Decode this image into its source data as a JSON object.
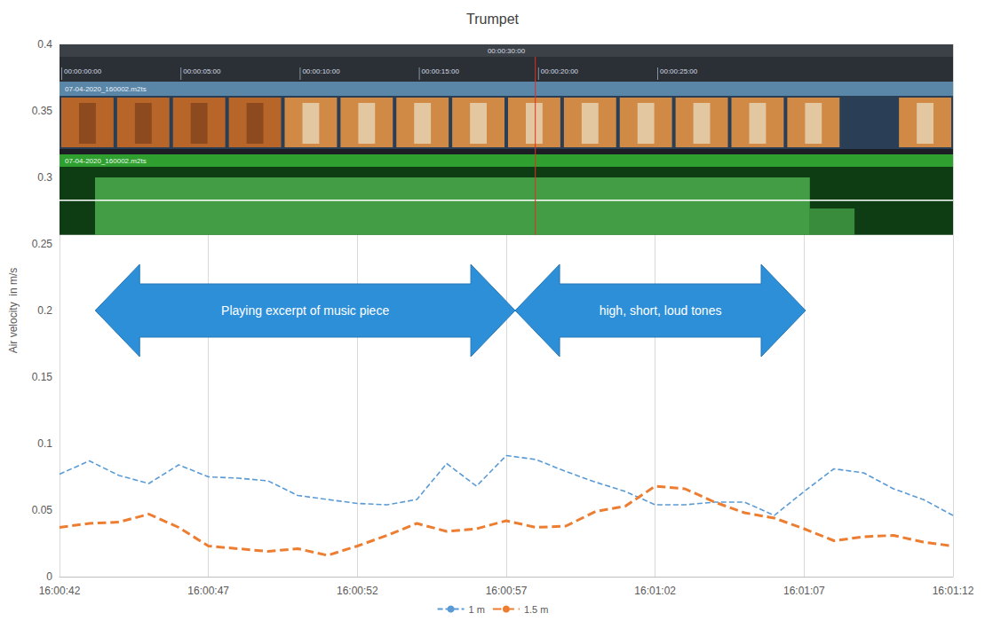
{
  "chart_data": {
    "type": "line",
    "title": "Trumpet",
    "y_label": "Air velocity  in m/s",
    "categories": [
      "16:00:42",
      null,
      null,
      null,
      null,
      "16:00:47",
      null,
      null,
      null,
      null,
      "16:00:52",
      null,
      null,
      null,
      null,
      "16:00:57",
      null,
      null,
      null,
      null,
      "16:01:02",
      null,
      null,
      null,
      null,
      "16:01:07",
      null,
      null,
      null,
      null,
      "16:01:12"
    ],
    "series": [
      {
        "name": "1 m",
        "color": "#5b9bd5",
        "line_style": "dashed",
        "values": [
          0.077,
          0.087,
          0.076,
          0.07,
          0.084,
          0.075,
          0.074,
          0.072,
          0.061,
          0.058,
          0.055,
          0.054,
          0.058,
          0.085,
          0.068,
          0.091,
          0.088,
          0.079,
          0.071,
          0.064,
          0.054,
          0.054,
          0.056,
          0.056,
          0.046,
          0.064,
          0.081,
          0.078,
          0.066,
          0.058,
          0.046
        ]
      },
      {
        "name": "1.5 m",
        "color": "#ed7d31",
        "line_style": "dashed",
        "values": [
          0.037,
          0.04,
          0.041,
          0.047,
          0.037,
          0.023,
          0.021,
          0.019,
          0.021,
          0.016,
          0.023,
          0.031,
          0.04,
          0.034,
          0.036,
          0.042,
          0.037,
          0.038,
          0.049,
          0.053,
          0.068,
          0.066,
          0.056,
          0.048,
          0.044,
          0.036,
          0.027,
          0.03,
          0.031,
          0.026,
          0.023
        ]
      }
    ],
    "ylim": [
      0,
      0.4
    ],
    "yticks": [
      0,
      0.05,
      0.1,
      0.15,
      0.2,
      0.25,
      0.3,
      0.35,
      0.4
    ],
    "grid": "x",
    "legend": "bottom",
    "marker": "none",
    "annotations": [
      "Playing excerpt of music piece",
      "high, short, loud tones"
    ],
    "inset": {
      "timeline": "00:00:30:00",
      "timecodes": [
        "00:00:00:00",
        "00:00:05:00",
        "00:00:10:00",
        "00:00:15:00",
        "00:00:20:00",
        "00:00:25:00"
      ],
      "clip": "07-04-2020_160002.m2ts"
    }
  }
}
